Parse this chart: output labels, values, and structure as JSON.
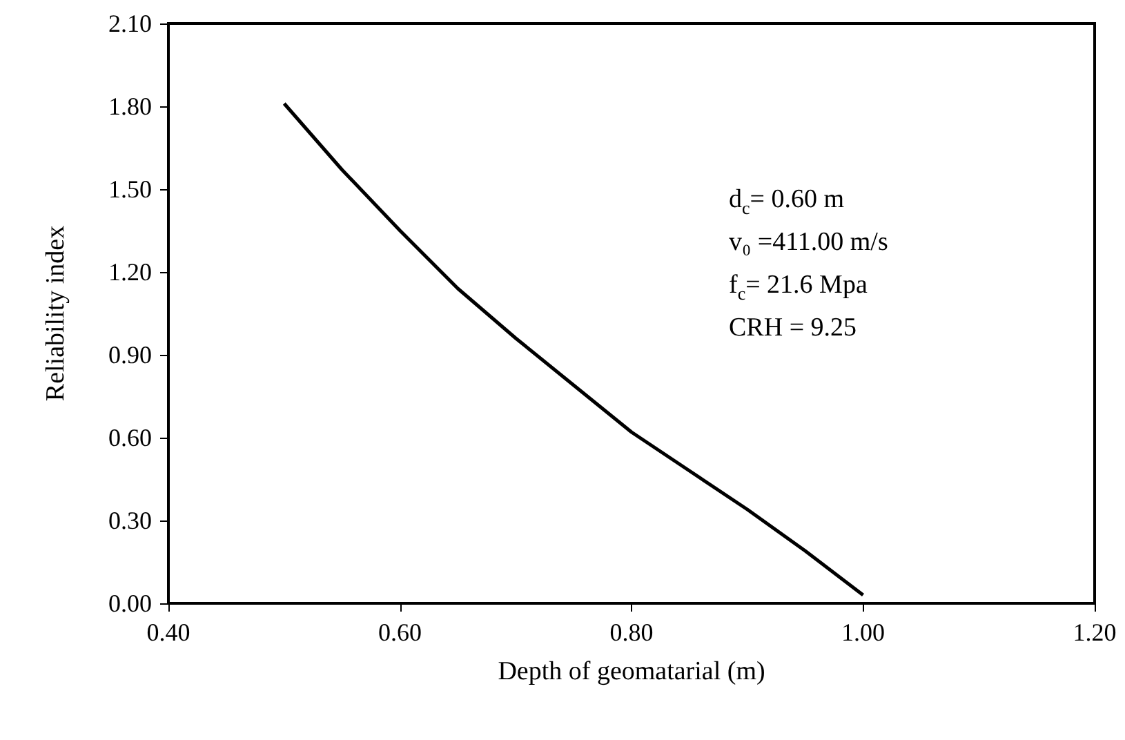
{
  "chart_data": {
    "type": "line",
    "xlabel": "Depth of geomatarial (m)",
    "ylabel": "Reliability index",
    "x": [
      0.5,
      0.55,
      0.6,
      0.65,
      0.7,
      0.75,
      0.8,
      0.85,
      0.9,
      0.95,
      1.0
    ],
    "series": [
      {
        "color": "#000000",
        "values": [
          1.81,
          1.57,
          1.35,
          1.14,
          0.96,
          0.79,
          0.62,
          0.48,
          0.34,
          0.19,
          0.03
        ]
      }
    ],
    "xlim": [
      0.4,
      1.2
    ],
    "xticks": [
      {
        "value": 0.4,
        "label": "0.40"
      },
      {
        "value": 0.6,
        "label": "0.60"
      },
      {
        "value": 0.8,
        "label": "0.80"
      },
      {
        "value": 1.0,
        "label": "1.00"
      },
      {
        "value": 1.2,
        "label": "1.20"
      }
    ],
    "ylim": [
      0,
      2.1
    ],
    "yticks": [
      {
        "value": 0,
        "label": "0.00"
      },
      {
        "value": 0.3,
        "label": "0.30"
      },
      {
        "value": 0.6,
        "label": "0.60"
      },
      {
        "value": 0.9,
        "label": "0.90"
      },
      {
        "value": 1.2,
        "label": "1.20"
      },
      {
        "value": 1.5,
        "label": "1.50"
      },
      {
        "value": 1.8,
        "label": "1.80"
      },
      {
        "value": 2.1,
        "label": "2.10"
      }
    ],
    "annotations": [
      "d$_{c}$= 0.60 m",
      "v₀ =411.00 m/s",
      "f$_{c}$= 21.6 Mpa",
      "CRH = 9.25"
    ],
    "grid": false,
    "marker": "none",
    "line_style": "solid"
  }
}
